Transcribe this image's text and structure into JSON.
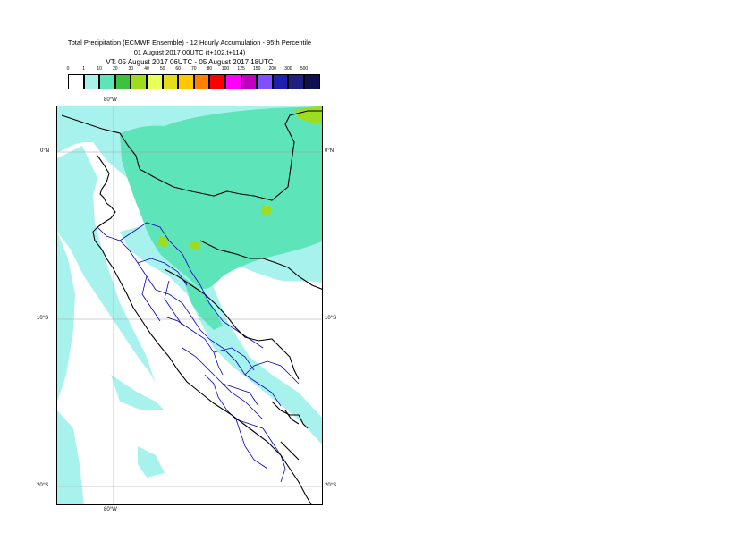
{
  "title": {
    "line1": "Total Precipitation (ECMWF Ensemble) - 12 Hourly Accumulation - 95th Percentile",
    "line2": "01 August 2017 00UTC (t+102,t+114)",
    "line3": "VT: 05 August 2017 06UTC - 05 August 2017 18UTC"
  },
  "legend": {
    "ticks": [
      "0",
      "1",
      "10",
      "20",
      "30",
      "40",
      "50",
      "60",
      "70",
      "80",
      "100",
      "125",
      "150",
      "200",
      "300",
      "500"
    ],
    "colors": [
      "#ffffff",
      "#a8f2ee",
      "#5de4b8",
      "#3cc23c",
      "#9ddc1e",
      "#e6ff5a",
      "#e6dc1e",
      "#ffc800",
      "#ff8000",
      "#ff0000",
      "#ff00ff",
      "#c000c0",
      "#8050ff",
      "#2020b0",
      "#202080",
      "#101050"
    ]
  },
  "map": {
    "labels": {
      "lon_top": "80°W",
      "lon_bottom": "80°W",
      "lat_0_left": "0°N",
      "lat_0_right": "0°N",
      "lat_10_left": "10°S",
      "lat_10_right": "10°S",
      "lat_20_left": "20°S",
      "lat_20_right": "20°S"
    },
    "colors": {
      "precip_light": "#a8f2ee",
      "precip_moderate": "#5de4b8",
      "precip_heavy": "#9ddc1e",
      "coastline": "#000000",
      "admin_borders": "#0000c8",
      "graticule": "#a0a0a0"
    }
  }
}
